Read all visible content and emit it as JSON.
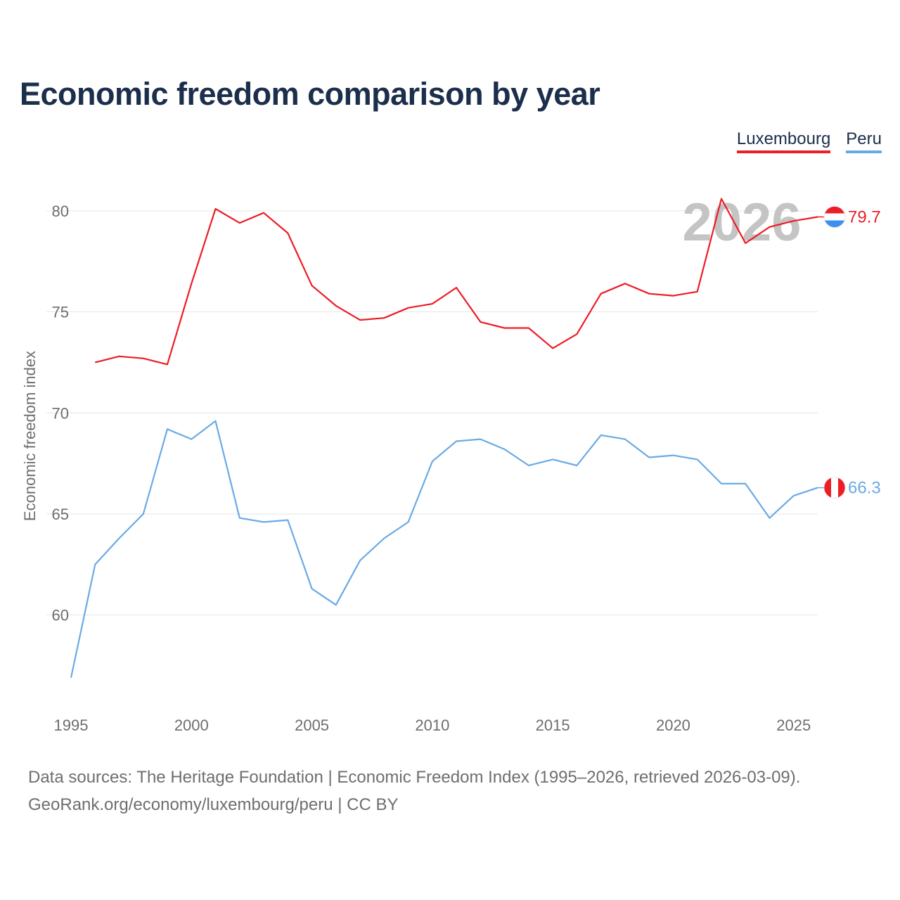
{
  "title": "Economic freedom comparison by year",
  "legend": {
    "luxembourg": "Luxembourg",
    "peru": "Peru"
  },
  "source": {
    "line1": "Data sources: The Heritage Foundation | Economic Freedom Index (1995–2026, retrieved 2026-03-09).",
    "line2": "GeoRank.org/economy/luxembourg/peru | CC BY"
  },
  "chart_data": {
    "type": "line",
    "title": "Economic freedom comparison by year",
    "xlabel": "",
    "ylabel": "Economic freedom index",
    "xlim": [
      1995,
      2026
    ],
    "ylim": [
      55.5,
      82.5
    ],
    "x_ticks": [
      1995,
      2000,
      2005,
      2010,
      2015,
      2020,
      2025
    ],
    "y_ticks": [
      60,
      65,
      70,
      75,
      80
    ],
    "grid": true,
    "year_watermark": "2026",
    "series": [
      {
        "name": "Luxembourg",
        "color": "#ee1c25",
        "end_label": "79.7",
        "x": [
          1996,
          1997,
          1998,
          1999,
          2000,
          2001,
          2002,
          2003,
          2004,
          2005,
          2006,
          2007,
          2008,
          2009,
          2010,
          2011,
          2012,
          2013,
          2014,
          2015,
          2016,
          2017,
          2018,
          2019,
          2020,
          2021,
          2022,
          2023,
          2024,
          2025,
          2026
        ],
        "values": [
          72.5,
          72.8,
          72.7,
          72.4,
          76.4,
          80.1,
          79.4,
          79.9,
          78.9,
          76.3,
          75.3,
          74.6,
          74.7,
          75.2,
          75.4,
          76.2,
          74.5,
          74.2,
          74.2,
          73.2,
          73.9,
          75.9,
          76.4,
          75.9,
          75.8,
          76.0,
          80.6,
          78.4,
          79.2,
          79.5,
          79.7
        ]
      },
      {
        "name": "Peru",
        "color": "#6aaae4",
        "end_label": "66.3",
        "x": [
          1995,
          1996,
          1997,
          1998,
          1999,
          2000,
          2001,
          2002,
          2003,
          2004,
          2005,
          2006,
          2007,
          2008,
          2009,
          2010,
          2011,
          2012,
          2013,
          2014,
          2015,
          2016,
          2017,
          2018,
          2019,
          2020,
          2021,
          2022,
          2023,
          2024,
          2025,
          2026
        ],
        "values": [
          56.9,
          62.5,
          63.8,
          65.0,
          69.2,
          68.7,
          69.6,
          64.8,
          64.6,
          64.7,
          61.3,
          60.5,
          62.7,
          63.8,
          64.6,
          67.6,
          68.6,
          68.7,
          68.2,
          67.4,
          67.7,
          67.4,
          68.9,
          68.7,
          67.8,
          67.9,
          67.7,
          66.5,
          66.5,
          64.8,
          65.9,
          66.3
        ]
      }
    ]
  }
}
